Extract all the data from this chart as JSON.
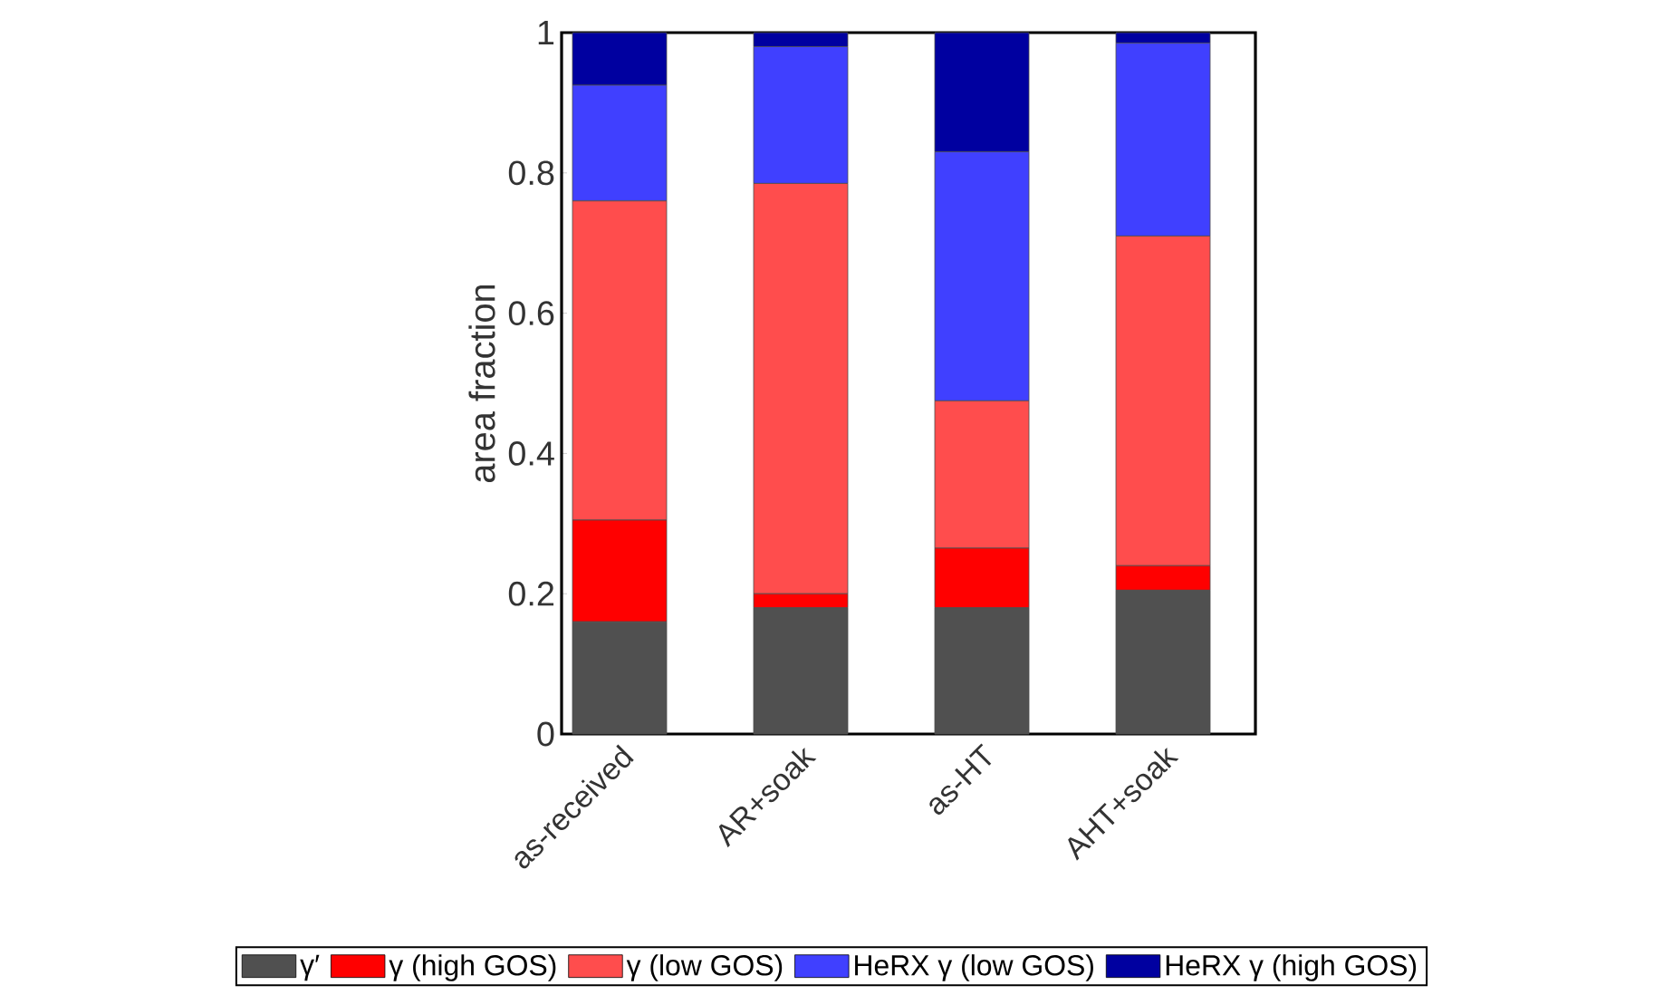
{
  "chart_data": {
    "type": "bar",
    "stacked": true,
    "ylabel": "area fraction",
    "categories": [
      "as-received",
      "AR+soak",
      "as-HT",
      "AHT+soak"
    ],
    "series": [
      {
        "name": "γ′",
        "color": "#505050",
        "values": [
          0.16,
          0.18,
          0.18,
          0.205
        ]
      },
      {
        "name": "γ (high GOS)",
        "color": "#ff0000",
        "values": [
          0.145,
          0.02,
          0.085,
          0.035
        ]
      },
      {
        "name": "γ (low GOS)",
        "color": "#ff4d4d",
        "values": [
          0.455,
          0.585,
          0.21,
          0.47
        ]
      },
      {
        "name": "HeRX γ (low GOS)",
        "color": "#4040ff",
        "values": [
          0.165,
          0.195,
          0.355,
          0.275
        ]
      },
      {
        "name": "HeRX γ (high GOS)",
        "color": "#0000a0",
        "values": [
          0.075,
          0.02,
          0.17,
          0.015
        ]
      }
    ],
    "ylim": [
      0,
      1
    ],
    "yticks": [
      0,
      0.2,
      0.4,
      0.6,
      0.8,
      1
    ],
    "grid": false,
    "legend": "bottom"
  }
}
